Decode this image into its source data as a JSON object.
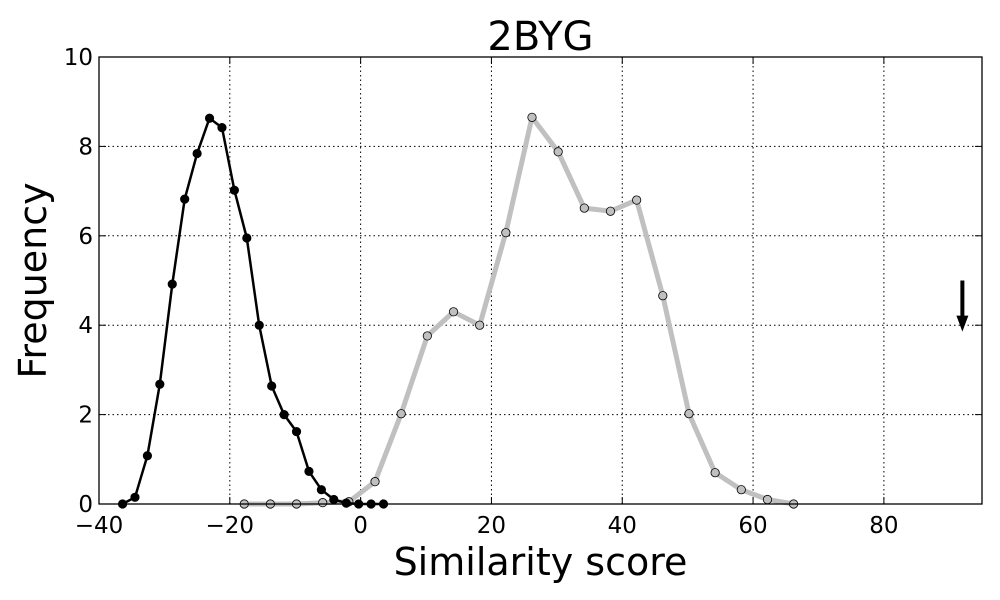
{
  "chart_data": {
    "type": "line",
    "title": "2BYG",
    "xlabel": "Similarity score",
    "ylabel": "Frequency",
    "xlim": [
      -40,
      95
    ],
    "ylim": [
      0,
      10
    ],
    "xticks": [
      -40,
      -20,
      0,
      20,
      40,
      60,
      80
    ],
    "xtick_labels": [
      "−40",
      "−20",
      "0",
      "20",
      "40",
      "60",
      "80"
    ],
    "yticks": [
      0,
      2,
      4,
      6,
      8,
      10
    ],
    "ytick_labels": [
      "0",
      "2",
      "4",
      "6",
      "8",
      "10"
    ],
    "grid": true,
    "series": [
      {
        "color": "#000000",
        "marker_fill": "#000000",
        "x": [
          -36.4,
          -34.5,
          -32.6,
          -30.7,
          -28.8,
          -26.9,
          -25.0,
          -23.1,
          -21.2,
          -19.3,
          -17.4,
          -15.5,
          -13.6,
          -11.7,
          -9.8,
          -7.9,
          -6.0,
          -4.1,
          -2.2,
          -0.3,
          1.6,
          3.5
        ],
        "y": [
          0.0,
          0.15,
          1.08,
          2.68,
          4.92,
          6.82,
          7.84,
          8.63,
          8.42,
          7.02,
          5.95,
          4.0,
          2.64,
          2.0,
          1.62,
          0.73,
          0.32,
          0.1,
          0.02,
          0.0,
          0.0,
          0.0
        ]
      },
      {
        "color": "#c0c0c0",
        "marker_fill": "#c0c0c0",
        "x": [
          -17.8,
          -13.8,
          -9.8,
          -5.8,
          -1.8,
          2.2,
          6.2,
          10.2,
          14.2,
          18.2,
          22.2,
          26.2,
          30.2,
          34.2,
          38.2,
          42.2,
          46.2,
          50.2,
          54.2,
          58.2,
          62.2,
          66.2
        ],
        "y": [
          0.0,
          0.0,
          0.0,
          0.03,
          0.05,
          0.5,
          2.02,
          3.76,
          4.3,
          4.0,
          6.07,
          8.65,
          7.88,
          6.62,
          6.55,
          6.8,
          4.66,
          2.02,
          0.7,
          0.32,
          0.1,
          0.0
        ]
      }
    ],
    "annotations": [
      {
        "type": "arrow",
        "direction": "down",
        "x": 92,
        "y_start": 5.0,
        "y_end": 3.9
      }
    ]
  }
}
